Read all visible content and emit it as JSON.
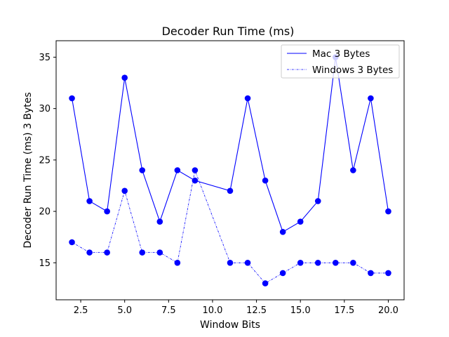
{
  "chart_data": {
    "type": "line",
    "title": "Decoder Run Time (ms)",
    "xlabel": "Window Bits",
    "ylabel": "Decoder Run Time (ms)  3 Bytes",
    "xlim": [
      1.1,
      20.9
    ],
    "ylim": [
      11.4,
      36.6
    ],
    "x_ticks": [
      2.5,
      5.0,
      7.5,
      10.0,
      12.5,
      15.0,
      17.5,
      20.0
    ],
    "x_tick_labels": [
      "2.5",
      "5.0",
      "7.5",
      "10.0",
      "12.5",
      "15.0",
      "17.5",
      "20.0"
    ],
    "y_ticks": [
      15,
      20,
      25,
      30,
      35
    ],
    "y_tick_labels": [
      "15",
      "20",
      "25",
      "30",
      "35"
    ],
    "grid": false,
    "legend_position": "top-right",
    "series": [
      {
        "name": "Mac 3 Bytes",
        "color": "#0000ff",
        "line_style": "solid",
        "marker": "circle",
        "x": [
          2,
          3,
          4,
          5,
          6,
          7,
          8,
          9,
          11,
          12,
          13,
          14,
          15,
          16,
          17,
          18,
          19,
          20
        ],
        "y": [
          31,
          21,
          20,
          33,
          24,
          19,
          24,
          23,
          22,
          31,
          23,
          18,
          19,
          21,
          35,
          24,
          31,
          20
        ]
      },
      {
        "name": "Windows 3 Bytes",
        "color": "#0000ff",
        "line_style": "dashdot",
        "marker": "circle",
        "x": [
          2,
          3,
          4,
          5,
          6,
          7,
          8,
          9,
          11,
          12,
          13,
          14,
          15,
          16,
          17,
          18,
          19,
          20
        ],
        "y": [
          17,
          16,
          16,
          22,
          16,
          16,
          15,
          24,
          15,
          15,
          13,
          14,
          15,
          15,
          15,
          15,
          14,
          14
        ]
      }
    ]
  }
}
